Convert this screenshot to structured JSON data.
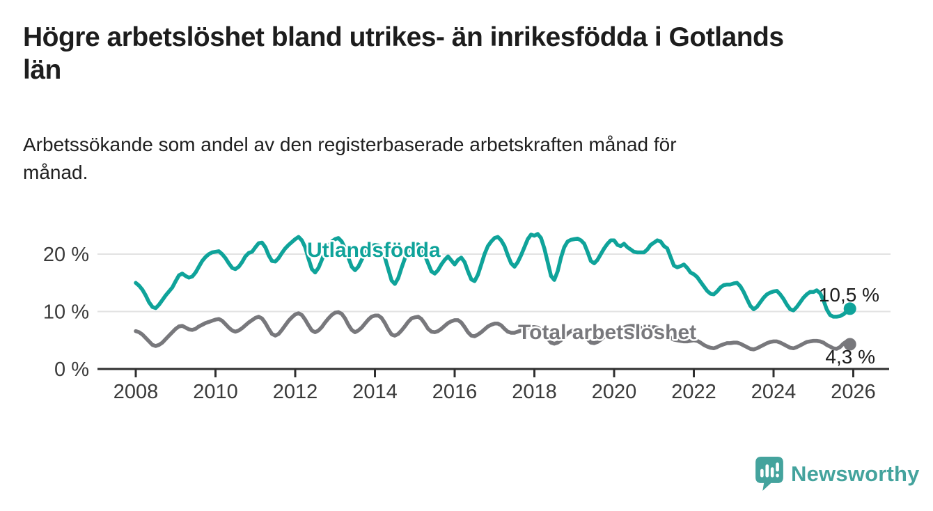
{
  "header": {
    "title": "Högre arbetslöshet bland utrikes- än inrikesfödda i Gotlands län",
    "title_lines": [
      "Högre arbetslöshet bland utrikes- än inrikesfödda i Gotlands",
      "län"
    ],
    "subtitle": "Arbetssökande som andel av den registerbaserade arbetskraften månad för månad.",
    "subtitle_lines": [
      "Arbetssökande som andel av den registerbaserade arbetskraften månad för",
      "månad."
    ]
  },
  "chart_data": {
    "type": "line",
    "title": "Högre arbetslöshet bland utrikes- än inrikesfödda i Gotlands län",
    "subtitle": "Arbetssökande som andel av den registerbaserade arbetskraften månad för månad.",
    "unit": "%",
    "frequency": "monthly",
    "x_start": "2008-01",
    "x_end": "2025-12",
    "xlim": [
      2008,
      2026
    ],
    "ylim": [
      0,
      24.5
    ],
    "grid": "horizontal",
    "legend_position": "inline-labels",
    "x_ticks": [
      "2008",
      "2010",
      "2012",
      "2014",
      "2016",
      "2018",
      "2020",
      "2022",
      "2024",
      "2026"
    ],
    "y_ticks": [
      {
        "label": "0 %",
        "value": 0
      },
      {
        "label": "10 %",
        "value": 10
      },
      {
        "label": "20 %",
        "value": 20
      }
    ],
    "series": [
      {
        "name": "Utlandsfödda",
        "color": "#0FA39A",
        "end_label": "10,5 %",
        "end_value": 10.5,
        "values": [
          15.0,
          14.5,
          13.8,
          12.8,
          11.6,
          10.8,
          10.6,
          11.2,
          12.0,
          12.8,
          13.5,
          14.2,
          15.3,
          16.3,
          16.6,
          16.2,
          15.9,
          16.1,
          16.8,
          17.8,
          18.8,
          19.5,
          20.0,
          20.3,
          20.4,
          20.5,
          20.0,
          19.3,
          18.4,
          17.6,
          17.4,
          17.8,
          18.6,
          19.6,
          20.2,
          20.4,
          21.2,
          21.9,
          22.0,
          21.2,
          19.8,
          18.8,
          18.7,
          19.3,
          20.2,
          21.0,
          21.6,
          22.1,
          22.6,
          23.0,
          22.4,
          21.2,
          19.2,
          17.4,
          16.8,
          17.6,
          19.0,
          20.4,
          21.4,
          22.2,
          22.6,
          22.8,
          22.2,
          21.0,
          19.4,
          17.8,
          17.2,
          17.8,
          19.0,
          20.2,
          21.0,
          21.4,
          21.6,
          21.5,
          20.8,
          19.4,
          17.4,
          15.4,
          14.8,
          15.8,
          17.6,
          19.2,
          20.6,
          21.2,
          21.6,
          21.7,
          21.0,
          19.8,
          18.4,
          17.0,
          16.6,
          17.2,
          18.2,
          19.0,
          19.6,
          18.9,
          18.2,
          19.0,
          19.4,
          18.6,
          17.0,
          15.6,
          15.3,
          16.4,
          18.2,
          20.0,
          21.4,
          22.2,
          22.8,
          23.0,
          22.4,
          21.4,
          19.8,
          18.4,
          17.8,
          18.6,
          19.8,
          21.2,
          22.6,
          23.4,
          23.2,
          23.5,
          22.8,
          21.0,
          18.6,
          16.2,
          15.5,
          17.0,
          19.4,
          21.2,
          22.2,
          22.5,
          22.6,
          22.7,
          22.4,
          21.8,
          20.4,
          18.8,
          18.4,
          19.0,
          20.0,
          21.0,
          21.8,
          22.4,
          22.4,
          21.6,
          21.4,
          21.8,
          21.2,
          20.8,
          20.4,
          20.3,
          20.3,
          20.3,
          20.8,
          21.6,
          22.0,
          22.4,
          22.2,
          21.4,
          21.0,
          19.5,
          18.0,
          17.7,
          17.9,
          18.2,
          17.6,
          16.8,
          16.5,
          16.0,
          15.2,
          14.4,
          13.6,
          13.1,
          13.0,
          13.5,
          14.2,
          14.6,
          14.7,
          14.7,
          14.9,
          15.0,
          14.4,
          13.4,
          12.2,
          11.0,
          10.4,
          10.8,
          11.6,
          12.4,
          13.0,
          13.3,
          13.5,
          13.6,
          13.0,
          12.2,
          11.2,
          10.4,
          10.2,
          10.8,
          11.6,
          12.4,
          13.0,
          13.4,
          13.4,
          13.7,
          13.2,
          12.0,
          10.4,
          9.4,
          9.1,
          9.1,
          9.2,
          9.5,
          10.0,
          10.5
        ]
      },
      {
        "name": "Total arbetslöshet",
        "color": "#78787C",
        "end_label": "4,3 %",
        "end_value": 4.3,
        "values": [
          6.6,
          6.4,
          6.0,
          5.4,
          4.8,
          4.2,
          4.0,
          4.2,
          4.6,
          5.2,
          5.8,
          6.4,
          7.0,
          7.4,
          7.5,
          7.2,
          6.9,
          6.8,
          7.0,
          7.4,
          7.7,
          8.0,
          8.2,
          8.4,
          8.6,
          8.7,
          8.4,
          7.8,
          7.2,
          6.7,
          6.5,
          6.7,
          7.1,
          7.6,
          8.1,
          8.5,
          8.9,
          9.1,
          8.8,
          8.0,
          7.0,
          6.1,
          5.8,
          6.1,
          6.8,
          7.6,
          8.4,
          9.0,
          9.5,
          9.7,
          9.4,
          8.6,
          7.6,
          6.7,
          6.4,
          6.7,
          7.3,
          8.1,
          8.8,
          9.4,
          9.8,
          9.9,
          9.6,
          8.8,
          7.7,
          6.8,
          6.4,
          6.7,
          7.2,
          7.9,
          8.6,
          9.1,
          9.3,
          9.3,
          8.9,
          8.0,
          6.9,
          6.0,
          5.8,
          6.1,
          6.7,
          7.4,
          8.2,
          8.8,
          9.0,
          9.1,
          8.7,
          7.9,
          7.0,
          6.5,
          6.4,
          6.6,
          7.0,
          7.5,
          8.0,
          8.3,
          8.5,
          8.5,
          8.1,
          7.3,
          6.4,
          5.8,
          5.7,
          6.0,
          6.4,
          6.9,
          7.4,
          7.7,
          7.9,
          7.9,
          7.6,
          7.0,
          6.5,
          6.3,
          6.3,
          6.5,
          6.7,
          7.0,
          7.2,
          7.3,
          7.3,
          7.2,
          6.8,
          6.1,
          5.3,
          4.6,
          4.4,
          4.6,
          5.0,
          5.6,
          6.2,
          6.6,
          6.8,
          6.8,
          6.5,
          5.9,
          5.2,
          4.6,
          4.5,
          4.7,
          5.1,
          5.6,
          6.1,
          6.4,
          6.6,
          6.6,
          6.7,
          7.2,
          7.4,
          7.5,
          7.5,
          7.3,
          7.2,
          7.1,
          7.1,
          7.2,
          7.3,
          7.2,
          6.9,
          6.4,
          5.9,
          5.4,
          5.1,
          5.0,
          4.9,
          4.8,
          4.8,
          4.9,
          5.0,
          4.9,
          4.6,
          4.2,
          3.9,
          3.7,
          3.6,
          3.8,
          4.1,
          4.3,
          4.5,
          4.5,
          4.6,
          4.6,
          4.4,
          4.1,
          3.8,
          3.5,
          3.4,
          3.6,
          3.9,
          4.2,
          4.5,
          4.7,
          4.8,
          4.8,
          4.6,
          4.3,
          4.0,
          3.7,
          3.6,
          3.8,
          4.1,
          4.4,
          4.7,
          4.8,
          4.9,
          4.9,
          4.8,
          4.6,
          4.2,
          3.9,
          3.6,
          3.5,
          3.8,
          4.4,
          4.8,
          4.3
        ]
      }
    ]
  },
  "branding": {
    "logo_text": "Newsworthy",
    "logo_color": "#44A39D"
  }
}
